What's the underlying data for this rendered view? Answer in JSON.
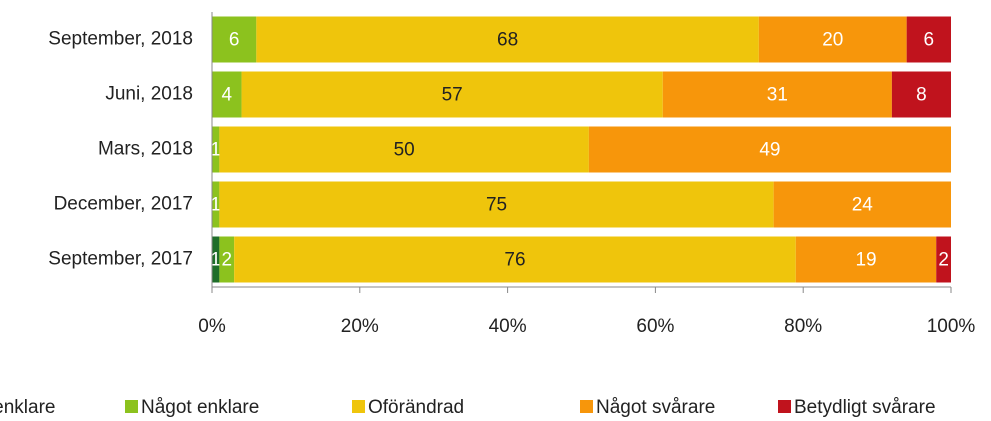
{
  "chart_data": {
    "type": "stacked-bar-horizontal",
    "categories": [
      "September, 2018",
      "Juni, 2018",
      "Mars, 2018",
      "December, 2017",
      "September, 2017"
    ],
    "series": [
      {
        "name": "Betydligt enklare",
        "color": "#1f6e2a",
        "values": [
          null,
          null,
          null,
          null,
          1
        ]
      },
      {
        "name": "Något enklare",
        "color": "#8cc21e",
        "values": [
          6,
          4,
          1,
          1,
          2
        ]
      },
      {
        "name": "Oförändrad",
        "color": "#efc50c",
        "values": [
          68,
          57,
          50,
          75,
          76
        ]
      },
      {
        "name": "Något svårare",
        "color": "#f7960b",
        "values": [
          20,
          31,
          49,
          24,
          19
        ]
      },
      {
        "name": "Betydligt svårare",
        "color": "#c0131d",
        "values": [
          6,
          8,
          null,
          null,
          2
        ]
      }
    ],
    "xlim": [
      0,
      100
    ],
    "xticks": [
      {
        "value": 0,
        "label": "0%"
      },
      {
        "value": 20,
        "label": "20%"
      },
      {
        "value": 40,
        "label": "40%"
      },
      {
        "value": 60,
        "label": "60%"
      },
      {
        "value": 80,
        "label": "80%"
      },
      {
        "value": 100,
        "label": "100%"
      }
    ],
    "grid": false
  }
}
